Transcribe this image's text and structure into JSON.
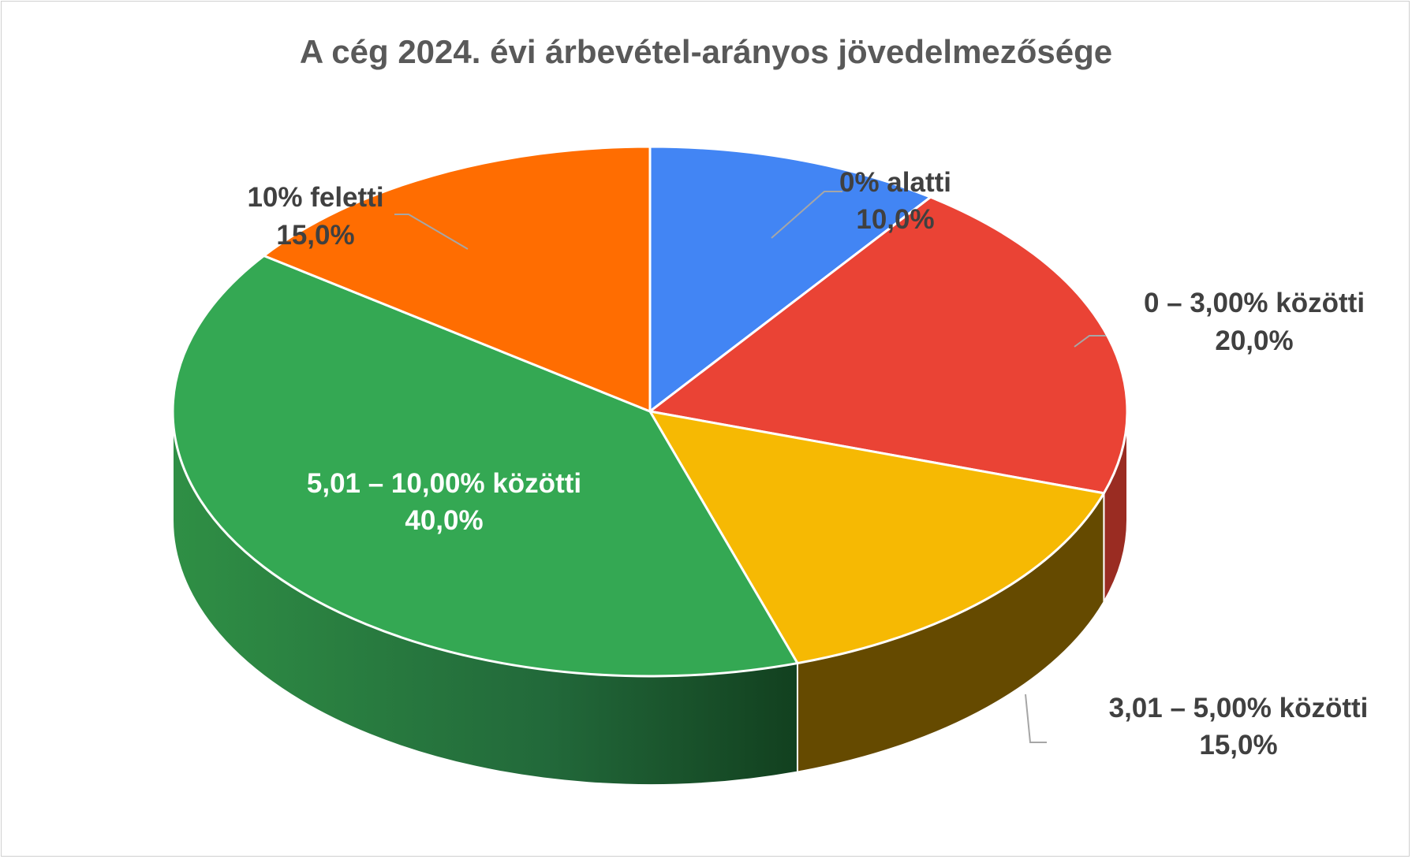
{
  "chart_data": {
    "type": "pie",
    "variant": "3d",
    "title": "A cég 2024. évi árbevétel-arányos jövedelmezősége",
    "categories": [
      "0% alatti",
      "0 – 3,00% közötti",
      "3,01 – 5,00% közötti",
      "5,01 – 10,00% közötti",
      "10% feletti"
    ],
    "values": [
      10.0,
      20.0,
      15.0,
      40.0,
      15.0
    ],
    "value_labels": [
      "10,0%",
      "20,0%",
      "15,0%",
      "40,0%",
      "15,0%"
    ],
    "colors": [
      "#4285f4",
      "#ea4335",
      "#f6b903",
      "#34a853",
      "#ff6d01"
    ],
    "side_colors": [
      "#2a5aa8",
      "#9a2c22",
      "#654a00",
      "#1e6b33",
      "#a84500"
    ],
    "legend": "none",
    "labels": "outside-with-leaders"
  }
}
